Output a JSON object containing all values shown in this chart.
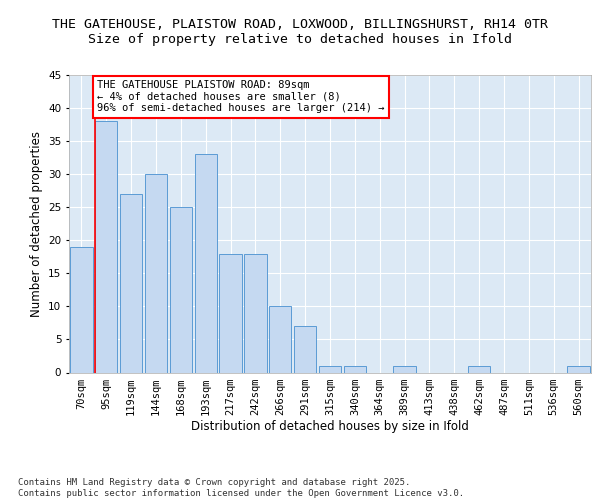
{
  "title_line1": "THE GATEHOUSE, PLAISTOW ROAD, LOXWOOD, BILLINGSHURST, RH14 0TR",
  "title_line2": "Size of property relative to detached houses in Ifold",
  "xlabel": "Distribution of detached houses by size in Ifold",
  "ylabel": "Number of detached properties",
  "categories": [
    "70sqm",
    "95sqm",
    "119sqm",
    "144sqm",
    "168sqm",
    "193sqm",
    "217sqm",
    "242sqm",
    "266sqm",
    "291sqm",
    "315sqm",
    "340sqm",
    "364sqm",
    "389sqm",
    "413sqm",
    "438sqm",
    "462sqm",
    "487sqm",
    "511sqm",
    "536sqm",
    "560sqm"
  ],
  "values": [
    19,
    38,
    27,
    30,
    25,
    33,
    18,
    18,
    10,
    7,
    1,
    1,
    0,
    1,
    0,
    0,
    1,
    0,
    0,
    0,
    1
  ],
  "bar_color": "#c5d9f1",
  "bar_edge_color": "#5b9bd5",
  "annotation_text": "THE GATEHOUSE PLAISTOW ROAD: 89sqm\n← 4% of detached houses are smaller (8)\n96% of semi-detached houses are larger (214) →",
  "annotation_box_color": "#ffffff",
  "annotation_box_edge_color": "#ff0000",
  "ylim": [
    0,
    45
  ],
  "yticks": [
    0,
    5,
    10,
    15,
    20,
    25,
    30,
    35,
    40,
    45
  ],
  "background_color": "#dce9f5",
  "footer_text": "Contains HM Land Registry data © Crown copyright and database right 2025.\nContains public sector information licensed under the Open Government Licence v3.0.",
  "title_fontsize": 9.5,
  "axis_label_fontsize": 8.5,
  "tick_fontsize": 7.5,
  "annotation_fontsize": 7.5,
  "footer_fontsize": 6.5
}
